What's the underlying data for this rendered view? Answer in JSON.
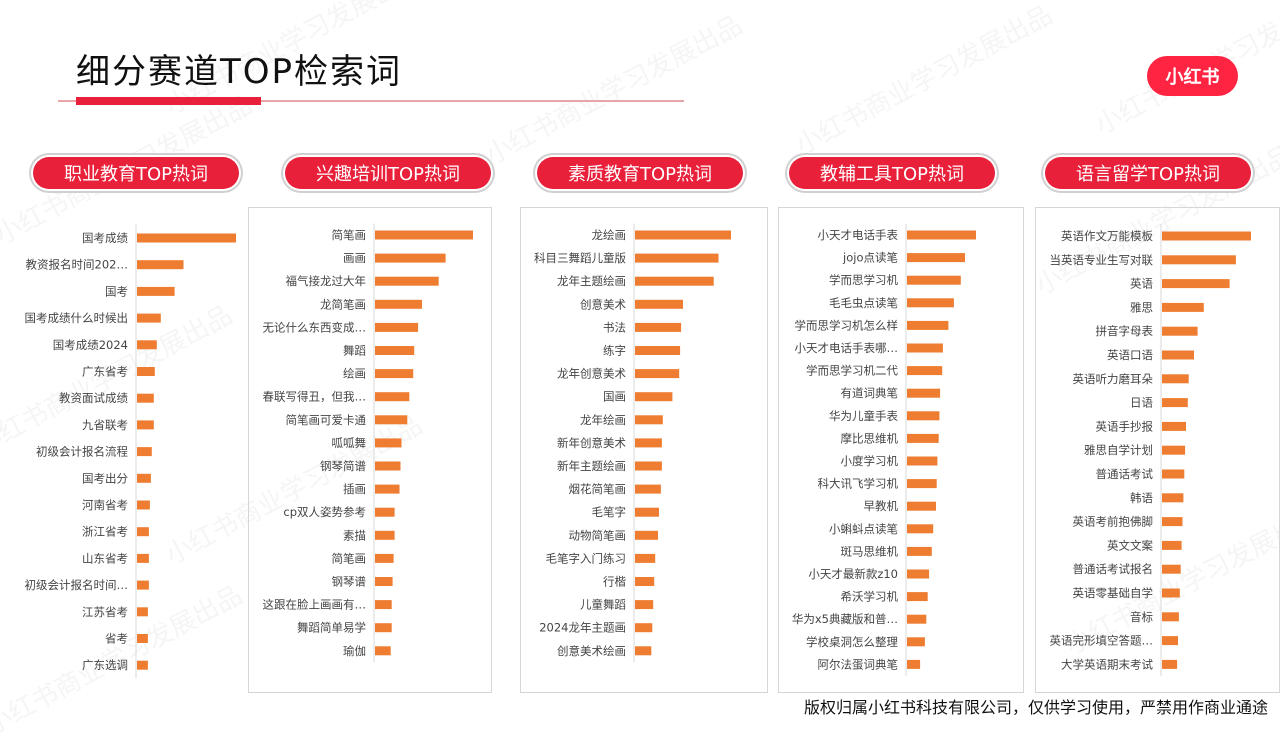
{
  "header": {
    "title": "细分赛道TOP检索词",
    "logo_text": "小红书"
  },
  "watermark_text": "小红书商业学习发展出品",
  "footer": {
    "copyright": "版权归属小红书科技有限公司，仅供学习使用，严禁用作商业通途"
  },
  "colors": {
    "accent": "#e8203a",
    "bar": "#ee7d31",
    "logo": "#ff2442"
  },
  "chart_data": [
    {
      "type": "bar",
      "orientation": "horizontal",
      "title": "职业教育TOP热词",
      "categories": [
        "国考成绩",
        "教资报名时间202…",
        "国考",
        "国考成绩什么时候出",
        "国考成绩2024",
        "广东省考",
        "教资面试成绩",
        "九省联考",
        "初级会计报名流程",
        "国考出分",
        "河南省考",
        "浙江省考",
        "山东省考",
        "初级会计报名时间…",
        "江苏省考",
        "省考",
        "广东选调"
      ],
      "values": [
        100,
        47,
        38,
        24,
        20,
        18,
        17,
        17,
        15,
        14,
        13,
        12,
        12,
        12,
        11,
        11,
        11
      ]
    },
    {
      "type": "bar",
      "orientation": "horizontal",
      "title": "兴趣培训TOP热词",
      "categories": [
        "简笔画",
        "画画",
        "福气接龙过大年",
        "龙简笔画",
        "无论什么东西变成…",
        "舞蹈",
        "绘画",
        "春联写得丑，但我…",
        "简笔画可爱卡通",
        "呱呱舞",
        "钢琴简谱",
        "插画",
        "cp双人姿势参考",
        "素描",
        "简笔画",
        "钢琴谱",
        "这跟在脸上画画有…",
        "舞蹈简单易学",
        "瑜伽"
      ],
      "values": [
        100,
        72,
        65,
        48,
        44,
        40,
        39,
        35,
        33,
        27,
        26,
        25,
        20,
        20,
        19,
        18,
        17,
        17,
        16
      ]
    },
    {
      "type": "bar",
      "orientation": "horizontal",
      "title": "素质教育TOP热词",
      "categories": [
        "龙绘画",
        "科目三舞蹈儿童版",
        "龙年主题绘画",
        "创意美术",
        "书法",
        "练字",
        "龙年创意美术",
        "国画",
        "龙年绘画",
        "新年创意美术",
        "新年主题绘画",
        "烟花简笔画",
        "毛笔字",
        "动物简笔画",
        "毛笔字入门练习",
        "行楷",
        "儿童舞蹈",
        "2024龙年主题画",
        "创意美术绘画"
      ],
      "values": [
        100,
        87,
        82,
        50,
        48,
        47,
        46,
        39,
        29,
        28,
        28,
        27,
        25,
        24,
        21,
        20,
        19,
        18,
        17
      ]
    },
    {
      "type": "bar",
      "orientation": "horizontal",
      "title": "教辅工具TOP热词",
      "categories": [
        "小天才电话手表",
        "jojo点读笔",
        "学而思学习机",
        "毛毛虫点读笔",
        "学而思学习机怎么样",
        "小天才电话手表哪…",
        "学而思学习机二代",
        "有道词典笔",
        "华为儿童手表",
        "摩比思维机",
        "小度学习机",
        "科大讯飞学习机",
        "早教机",
        "小蝌蚪点读笔",
        "斑马思维机",
        "小天才最新款z10",
        "希沃学习机",
        "华为x5典藏版和普…",
        "学校桌洞怎么整理",
        "阿尔法蛋词典笔"
      ],
      "values": [
        100,
        84,
        78,
        68,
        60,
        52,
        51,
        48,
        47,
        46,
        44,
        43,
        42,
        38,
        36,
        32,
        30,
        28,
        26,
        19
      ]
    },
    {
      "type": "bar",
      "orientation": "horizontal",
      "title": "语言留学TOP热词",
      "categories": [
        "英语作文万能模板",
        "当英语专业生写对联",
        "英语",
        "雅思",
        "拼音字母表",
        "英语口语",
        "英语听力磨耳朵",
        "日语",
        "英语手抄报",
        "雅思自学计划",
        "普通话考试",
        "韩语",
        "英语考前抱佛脚",
        "英文文案",
        "普通话考试报名",
        "英语零基础自学",
        "音标",
        "英语完形填空答题…",
        "大学英语期末考试"
      ],
      "values": [
        100,
        83,
        76,
        47,
        40,
        36,
        30,
        29,
        27,
        26,
        25,
        24,
        23,
        22,
        21,
        20,
        19,
        18,
        17
      ]
    }
  ]
}
